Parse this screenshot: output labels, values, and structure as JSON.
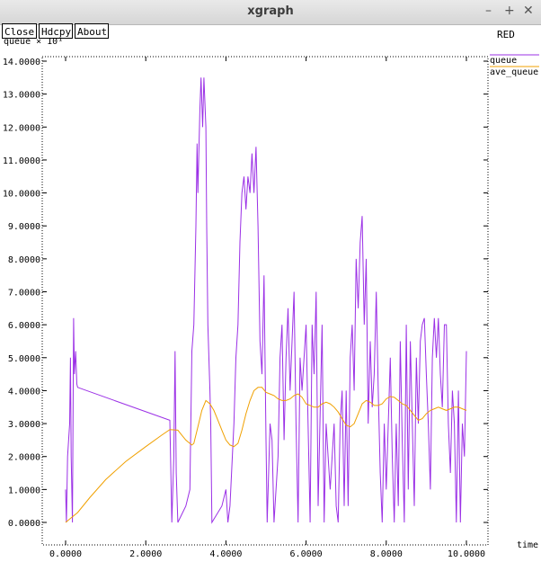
{
  "window": {
    "title": "xgraph",
    "minimize_glyph": "–",
    "maximize_glyph": "+",
    "close_glyph": "✕"
  },
  "toolbar": {
    "close_label": "Close",
    "hdcpy_label": "Hdcpy",
    "about_label": "About"
  },
  "chart_data": {
    "type": "line",
    "title": "RED",
    "ylabel": "queue × 10¹",
    "xlabel": "time",
    "xlim": [
      0,
      10
    ],
    "ylim": [
      0,
      14
    ],
    "x_ticks": [
      "0.0000",
      "2.0000",
      "4.0000",
      "6.0000",
      "8.0000",
      "10.0000"
    ],
    "y_ticks": [
      "0.0000",
      "1.0000",
      "2.0000",
      "3.0000",
      "4.0000",
      "5.0000",
      "6.0000",
      "7.0000",
      "8.0000",
      "9.0000",
      "10.0000",
      "11.0000",
      "12.0000",
      "13.0000",
      "14.0000"
    ],
    "grid": false,
    "legend_position": "right",
    "series": [
      {
        "name": "queue",
        "color": "#9b30e6",
        "points": [
          [
            0,
            1.0
          ],
          [
            0.02,
            0.0
          ],
          [
            0.05,
            2.0
          ],
          [
            0.1,
            3.0
          ],
          [
            0.12,
            5.0
          ],
          [
            0.14,
            2.0
          ],
          [
            0.17,
            0.0
          ],
          [
            0.2,
            6.2
          ],
          [
            0.22,
            4.5
          ],
          [
            0.25,
            5.2
          ],
          [
            0.28,
            4.2
          ],
          [
            0.3,
            4.1
          ],
          [
            2.6,
            3.1
          ],
          [
            2.65,
            0.0
          ],
          [
            2.7,
            2.0
          ],
          [
            2.73,
            5.2
          ],
          [
            2.76,
            1.5
          ],
          [
            2.8,
            0.0
          ],
          [
            3.0,
            0.5
          ],
          [
            3.1,
            1.0
          ],
          [
            3.15,
            5.2
          ],
          [
            3.2,
            6.0
          ],
          [
            3.25,
            9.0
          ],
          [
            3.28,
            11.5
          ],
          [
            3.3,
            10.0
          ],
          [
            3.35,
            12.5
          ],
          [
            3.38,
            13.5
          ],
          [
            3.42,
            12.0
          ],
          [
            3.45,
            13.5
          ],
          [
            3.5,
            12.0
          ],
          [
            3.52,
            9.0
          ],
          [
            3.55,
            6.0
          ],
          [
            3.6,
            4.0
          ],
          [
            3.62,
            3.0
          ],
          [
            3.65,
            0.0
          ],
          [
            3.9,
            0.5
          ],
          [
            4.0,
            1.0
          ],
          [
            4.05,
            0.0
          ],
          [
            4.1,
            0.5
          ],
          [
            4.2,
            3.0
          ],
          [
            4.25,
            5.0
          ],
          [
            4.3,
            6.0
          ],
          [
            4.35,
            8.5
          ],
          [
            4.4,
            10.0
          ],
          [
            4.45,
            10.5
          ],
          [
            4.5,
            9.5
          ],
          [
            4.55,
            10.5
          ],
          [
            4.6,
            10.0
          ],
          [
            4.65,
            11.2
          ],
          [
            4.7,
            10.0
          ],
          [
            4.75,
            11.4
          ],
          [
            4.8,
            9.0
          ],
          [
            4.85,
            5.5
          ],
          [
            4.9,
            4.5
          ],
          [
            4.95,
            7.5
          ],
          [
            5.0,
            2.5
          ],
          [
            5.03,
            0.0
          ],
          [
            5.1,
            3.0
          ],
          [
            5.15,
            2.5
          ],
          [
            5.2,
            0.0
          ],
          [
            5.3,
            2.0
          ],
          [
            5.35,
            5.0
          ],
          [
            5.4,
            6.0
          ],
          [
            5.45,
            2.5
          ],
          [
            5.5,
            5.0
          ],
          [
            5.55,
            6.5
          ],
          [
            5.6,
            4.0
          ],
          [
            5.7,
            7.0
          ],
          [
            5.75,
            3.0
          ],
          [
            5.8,
            0.0
          ],
          [
            5.85,
            5.0
          ],
          [
            5.9,
            4.0
          ],
          [
            6.0,
            6.0
          ],
          [
            6.05,
            3.0
          ],
          [
            6.1,
            0.0
          ],
          [
            6.15,
            6.0
          ],
          [
            6.2,
            4.5
          ],
          [
            6.25,
            7.0
          ],
          [
            6.3,
            0.5
          ],
          [
            6.4,
            6.0
          ],
          [
            6.45,
            0.0
          ],
          [
            6.5,
            3.0
          ],
          [
            6.55,
            2.0
          ],
          [
            6.6,
            1.0
          ],
          [
            6.7,
            3.0
          ],
          [
            6.75,
            0.5
          ],
          [
            6.8,
            0.0
          ],
          [
            6.85,
            3.0
          ],
          [
            6.9,
            4.0
          ],
          [
            6.95,
            0.5
          ],
          [
            7.0,
            4.0
          ],
          [
            7.05,
            0.5
          ],
          [
            7.1,
            5.0
          ],
          [
            7.15,
            6.0
          ],
          [
            7.2,
            4.0
          ],
          [
            7.25,
            8.0
          ],
          [
            7.3,
            6.5
          ],
          [
            7.35,
            8.5
          ],
          [
            7.4,
            9.3
          ],
          [
            7.45,
            6.0
          ],
          [
            7.5,
            8.0
          ],
          [
            7.55,
            3.0
          ],
          [
            7.6,
            5.5
          ],
          [
            7.65,
            3.5
          ],
          [
            7.7,
            4.5
          ],
          [
            7.75,
            7.0
          ],
          [
            7.8,
            4.0
          ],
          [
            7.85,
            1.5
          ],
          [
            7.9,
            0.0
          ],
          [
            7.95,
            3.0
          ],
          [
            8.0,
            1.0
          ],
          [
            8.1,
            5.0
          ],
          [
            8.15,
            2.0
          ],
          [
            8.2,
            0.0
          ],
          [
            8.25,
            3.0
          ],
          [
            8.3,
            0.5
          ],
          [
            8.35,
            5.5
          ],
          [
            8.4,
            2.5
          ],
          [
            8.45,
            0.0
          ],
          [
            8.5,
            6.0
          ],
          [
            8.55,
            1.0
          ],
          [
            8.6,
            5.5
          ],
          [
            8.65,
            3.0
          ],
          [
            8.7,
            0.5
          ],
          [
            8.75,
            5.0
          ],
          [
            8.8,
            3.0
          ],
          [
            8.85,
            5.5
          ],
          [
            8.9,
            6.0
          ],
          [
            8.95,
            6.2
          ],
          [
            9.0,
            4.5
          ],
          [
            9.05,
            3.0
          ],
          [
            9.1,
            1.0
          ],
          [
            9.15,
            5.0
          ],
          [
            9.2,
            6.2
          ],
          [
            9.25,
            5.0
          ],
          [
            9.3,
            6.2
          ],
          [
            9.35,
            4.5
          ],
          [
            9.4,
            3.5
          ],
          [
            9.45,
            6.0
          ],
          [
            9.5,
            6.0
          ],
          [
            9.55,
            3.0
          ],
          [
            9.6,
            1.5
          ],
          [
            9.65,
            4.0
          ],
          [
            9.7,
            3.0
          ],
          [
            9.75,
            0.0
          ],
          [
            9.8,
            4.0
          ],
          [
            9.85,
            0.0
          ],
          [
            9.9,
            3.0
          ],
          [
            9.95,
            2.0
          ],
          [
            10.0,
            5.2
          ]
        ]
      },
      {
        "name": "ave_queue",
        "color": "#f0a000",
        "points": [
          [
            0,
            0.0
          ],
          [
            0.1,
            0.1
          ],
          [
            0.3,
            0.3
          ],
          [
            0.6,
            0.75
          ],
          [
            1.0,
            1.3
          ],
          [
            1.5,
            1.85
          ],
          [
            2.0,
            2.3
          ],
          [
            2.4,
            2.65
          ],
          [
            2.6,
            2.82
          ],
          [
            2.8,
            2.8
          ],
          [
            2.9,
            2.65
          ],
          [
            3.0,
            2.5
          ],
          [
            3.05,
            2.45
          ],
          [
            3.1,
            2.4
          ],
          [
            3.15,
            2.35
          ],
          [
            3.2,
            2.4
          ],
          [
            3.3,
            2.9
          ],
          [
            3.4,
            3.4
          ],
          [
            3.5,
            3.7
          ],
          [
            3.6,
            3.6
          ],
          [
            3.7,
            3.4
          ],
          [
            3.8,
            3.1
          ],
          [
            3.9,
            2.8
          ],
          [
            4.0,
            2.5
          ],
          [
            4.1,
            2.35
          ],
          [
            4.2,
            2.3
          ],
          [
            4.3,
            2.4
          ],
          [
            4.4,
            2.8
          ],
          [
            4.5,
            3.3
          ],
          [
            4.6,
            3.7
          ],
          [
            4.7,
            4.0
          ],
          [
            4.8,
            4.1
          ],
          [
            4.9,
            4.1
          ],
          [
            5.0,
            3.95
          ],
          [
            5.1,
            3.9
          ],
          [
            5.2,
            3.85
          ],
          [
            5.3,
            3.75
          ],
          [
            5.4,
            3.7
          ],
          [
            5.5,
            3.7
          ],
          [
            5.6,
            3.75
          ],
          [
            5.7,
            3.85
          ],
          [
            5.8,
            3.9
          ],
          [
            5.9,
            3.8
          ],
          [
            6.0,
            3.6
          ],
          [
            6.1,
            3.55
          ],
          [
            6.2,
            3.5
          ],
          [
            6.3,
            3.5
          ],
          [
            6.4,
            3.6
          ],
          [
            6.5,
            3.65
          ],
          [
            6.6,
            3.6
          ],
          [
            6.7,
            3.5
          ],
          [
            6.8,
            3.35
          ],
          [
            6.9,
            3.15
          ],
          [
            7.0,
            2.95
          ],
          [
            7.1,
            2.9
          ],
          [
            7.2,
            3.0
          ],
          [
            7.3,
            3.3
          ],
          [
            7.4,
            3.6
          ],
          [
            7.5,
            3.7
          ],
          [
            7.6,
            3.65
          ],
          [
            7.7,
            3.55
          ],
          [
            7.8,
            3.55
          ],
          [
            7.9,
            3.6
          ],
          [
            8.0,
            3.75
          ],
          [
            8.1,
            3.82
          ],
          [
            8.2,
            3.8
          ],
          [
            8.3,
            3.7
          ],
          [
            8.4,
            3.6
          ],
          [
            8.5,
            3.55
          ],
          [
            8.6,
            3.4
          ],
          [
            8.7,
            3.25
          ],
          [
            8.8,
            3.1
          ],
          [
            8.9,
            3.15
          ],
          [
            9.0,
            3.3
          ],
          [
            9.1,
            3.4
          ],
          [
            9.2,
            3.45
          ],
          [
            9.3,
            3.5
          ],
          [
            9.4,
            3.45
          ],
          [
            9.5,
            3.4
          ],
          [
            9.6,
            3.45
          ],
          [
            9.7,
            3.5
          ],
          [
            9.8,
            3.5
          ],
          [
            9.9,
            3.45
          ],
          [
            10.0,
            3.4
          ]
        ]
      }
    ]
  }
}
